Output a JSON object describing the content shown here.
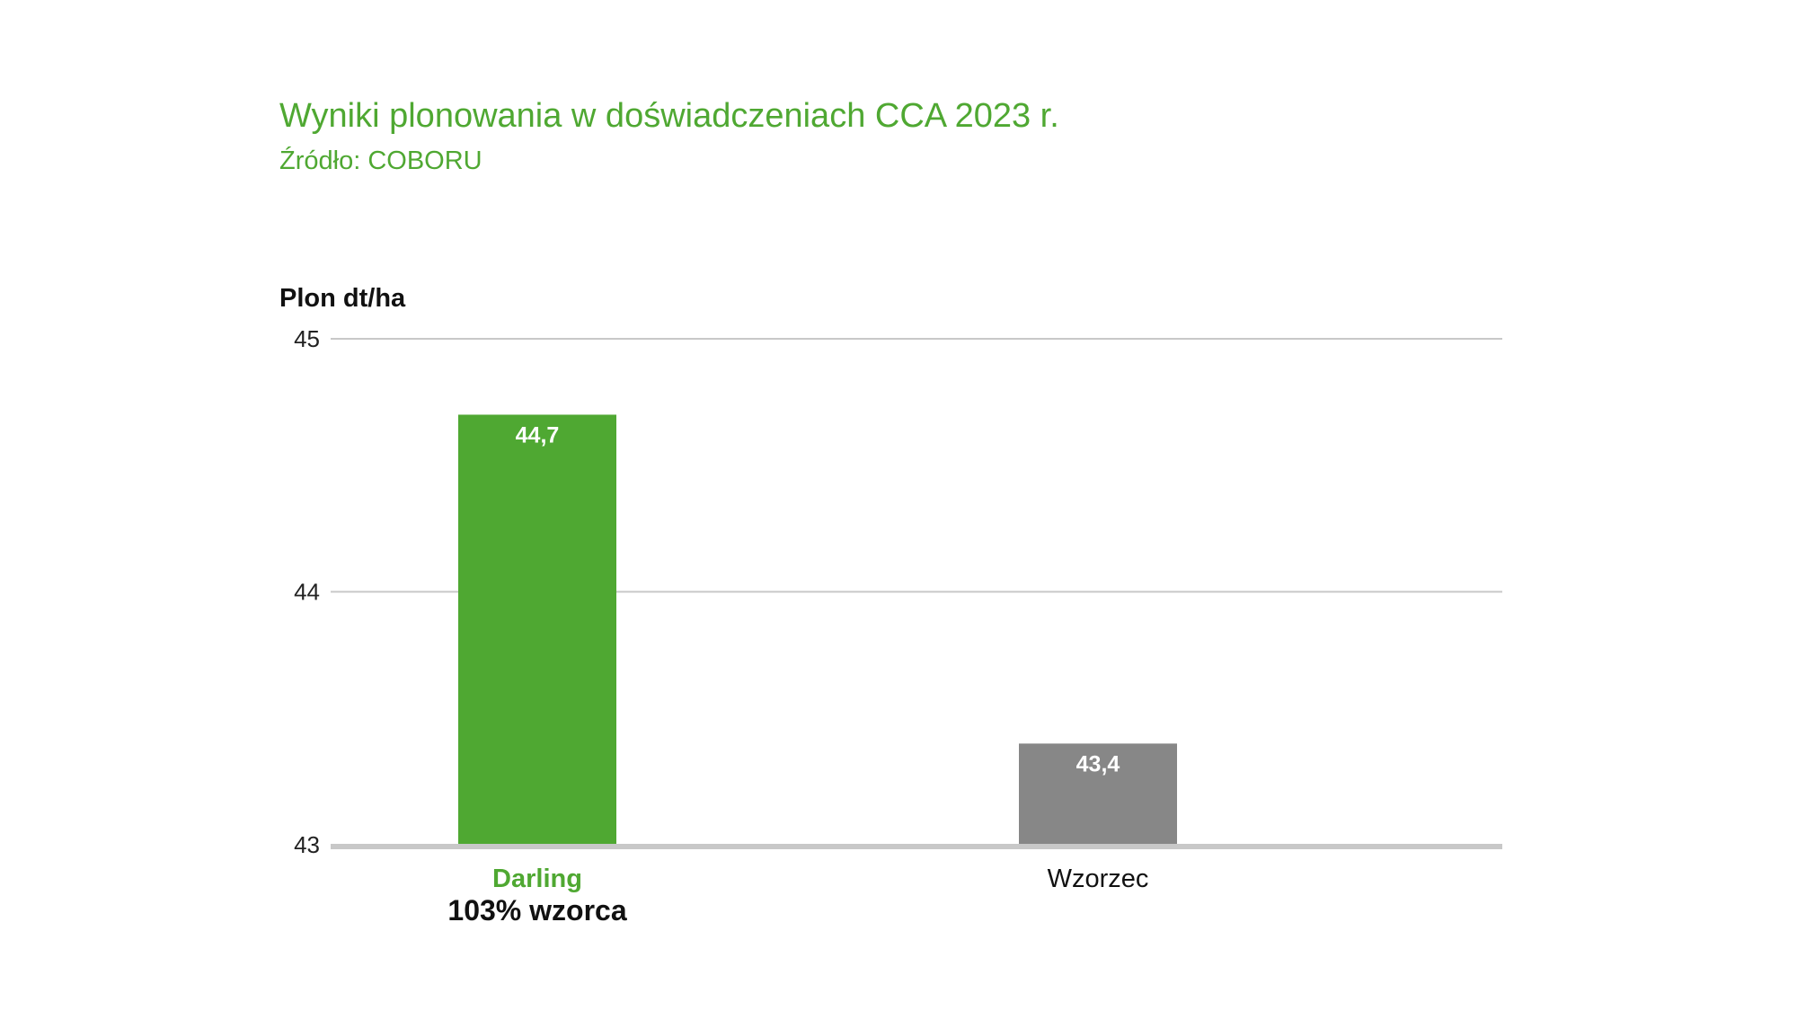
{
  "chart_data": {
    "type": "bar",
    "title": "Wyniki plonowania w doświadczeniach CCA 2023 r.",
    "subtitle": "Źródło: COBORU",
    "ylabel": "Plon dt/ha",
    "xlabel": "",
    "ylim": [
      43,
      45
    ],
    "yticks": [
      "43",
      "44",
      "45"
    ],
    "grid": true,
    "categories": [
      "Darling",
      "Wzorzec"
    ],
    "values": [
      44.7,
      43.4
    ],
    "value_labels": [
      "44,7",
      "43,4"
    ],
    "bar_colors": [
      "#4fa832",
      "#878787"
    ],
    "category_colors": [
      "#4fa832",
      "#111111"
    ],
    "category_bold": [
      true,
      false
    ],
    "category_notes": [
      "103% wzorca",
      ""
    ]
  }
}
